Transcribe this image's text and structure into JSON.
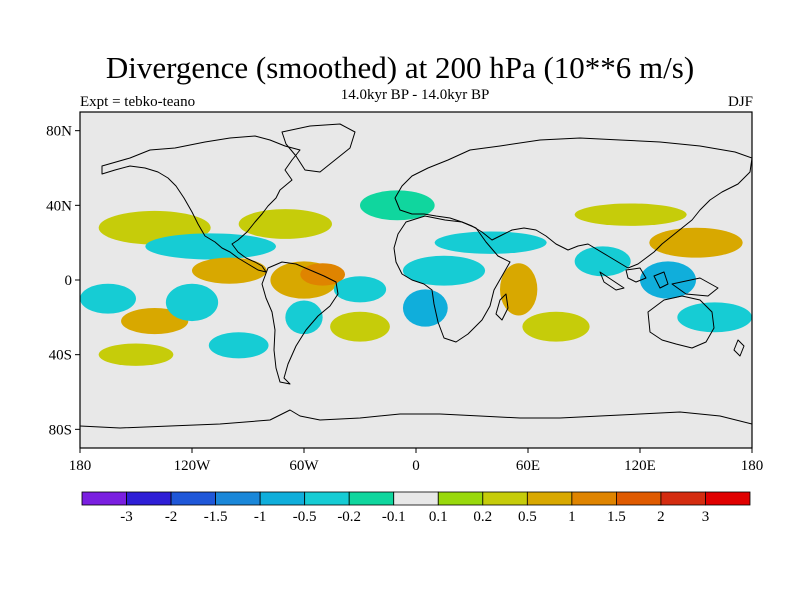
{
  "header": {
    "title": "Divergence (smoothed) at 200 hPa (10**6 m/s)",
    "subtitle": "14.0kyr BP - 14.0kyr BP",
    "left_label": "Expt = tebko-teano",
    "right_label": "DJF"
  },
  "axes": {
    "lat_labels": [
      "80N",
      "40N",
      "0",
      "40S",
      "80S"
    ],
    "lon_labels": [
      "180",
      "120W",
      "60W",
      "0",
      "60E",
      "120E",
      "180"
    ],
    "lat_values": [
      80,
      40,
      0,
      -40,
      -80
    ],
    "lon_values": [
      -180,
      -120,
      -60,
      0,
      60,
      120,
      180
    ],
    "lat_range": [
      -90,
      90
    ],
    "lon_range": [
      -180,
      180
    ]
  },
  "colorbar": {
    "labels": [
      "-3",
      "-2",
      "-1.5",
      "-1",
      "-0.5",
      "-0.2",
      "-0.1",
      "0.1",
      "0.2",
      "0.5",
      "1",
      "1.5",
      "2",
      "3"
    ],
    "colors": [
      "#7a1fe0",
      "#2e1ed6",
      "#1f57d8",
      "#1a87d9",
      "#10aedb",
      "#16ccd4",
      "#10d69e",
      "#e8e8e8",
      "#99d90c",
      "#c6cc0a",
      "#d8a800",
      "#df8400",
      "#df5a00",
      "#d42c10",
      "#e00000"
    ]
  },
  "chart_data": {
    "type": "heatmap",
    "title": "Divergence (smoothed) at 200 hPa (10**6 m/s)",
    "subtitle": "14.0kyr BP - 14.0kyr BP",
    "experiment": "Expt = tebko-teano",
    "season": "DJF",
    "units": "10**6 m/s",
    "x_range": [
      -180,
      180
    ],
    "y_range": [
      -90,
      90
    ],
    "levels": [
      -3,
      -2,
      -1.5,
      -1,
      -0.5,
      -0.2,
      -0.1,
      0.1,
      0.2,
      0.5,
      1,
      1.5,
      2,
      3
    ],
    "features": [
      {
        "lon": -140,
        "lat": 28,
        "rx": 30,
        "ry": 9,
        "value": 0.3
      },
      {
        "lon": -165,
        "lat": -10,
        "rx": 15,
        "ry": 8,
        "value": -0.4
      },
      {
        "lon": -140,
        "lat": -22,
        "rx": 18,
        "ry": 7,
        "value": 0.6
      },
      {
        "lon": -150,
        "lat": -40,
        "rx": 20,
        "ry": 6,
        "value": 0.2
      },
      {
        "lon": -110,
        "lat": 18,
        "rx": 35,
        "ry": 7,
        "value": -0.3
      },
      {
        "lon": -100,
        "lat": 5,
        "rx": 20,
        "ry": 7,
        "value": 0.7
      },
      {
        "lon": -120,
        "lat": -12,
        "rx": 14,
        "ry": 10,
        "value": -0.4
      },
      {
        "lon": -95,
        "lat": -35,
        "rx": 16,
        "ry": 7,
        "value": -0.3
      },
      {
        "lon": -70,
        "lat": 30,
        "rx": 25,
        "ry": 8,
        "value": 0.3
      },
      {
        "lon": -60,
        "lat": 0,
        "rx": 18,
        "ry": 10,
        "value": 0.6
      },
      {
        "lon": -50,
        "lat": 3,
        "rx": 12,
        "ry": 6,
        "value": 1.1
      },
      {
        "lon": -60,
        "lat": -20,
        "rx": 10,
        "ry": 9,
        "value": -0.3
      },
      {
        "lon": -30,
        "lat": -5,
        "rx": 14,
        "ry": 7,
        "value": -0.5
      },
      {
        "lon": -30,
        "lat": -25,
        "rx": 16,
        "ry": 8,
        "value": 0.3
      },
      {
        "lon": -10,
        "lat": 40,
        "rx": 20,
        "ry": 8,
        "value": -0.2
      },
      {
        "lon": 15,
        "lat": 5,
        "rx": 22,
        "ry": 8,
        "value": -0.3
      },
      {
        "lon": 5,
        "lat": -15,
        "rx": 12,
        "ry": 10,
        "value": -0.6
      },
      {
        "lon": 40,
        "lat": 20,
        "rx": 30,
        "ry": 6,
        "value": -0.3
      },
      {
        "lon": 55,
        "lat": -5,
        "rx": 10,
        "ry": 14,
        "value": 0.7
      },
      {
        "lon": 75,
        "lat": -25,
        "rx": 18,
        "ry": 8,
        "value": 0.4
      },
      {
        "lon": 100,
        "lat": 10,
        "rx": 15,
        "ry": 8,
        "value": -0.4
      },
      {
        "lon": 115,
        "lat": 35,
        "rx": 30,
        "ry": 6,
        "value": 0.4
      },
      {
        "lon": 135,
        "lat": 0,
        "rx": 15,
        "ry": 10,
        "value": -0.8
      },
      {
        "lon": 150,
        "lat": 20,
        "rx": 25,
        "ry": 8,
        "value": 0.5
      },
      {
        "lon": 160,
        "lat": -20,
        "rx": 20,
        "ry": 8,
        "value": -0.3
      }
    ]
  }
}
